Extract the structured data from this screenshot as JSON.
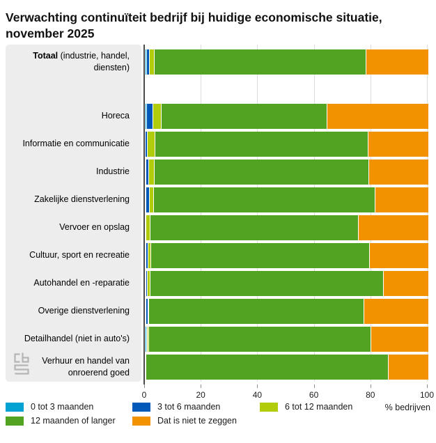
{
  "title": "Verwachting continuïteit bedrijf bij huidige economische situatie, november 2025",
  "axis": {
    "ticks": [
      0,
      20,
      40,
      60,
      80,
      100
    ],
    "unit_label": "% bedrijven"
  },
  "legend": [
    {
      "label": "0 tot 3 maanden",
      "color": "#00a2d1"
    },
    {
      "label": "3 tot 6 maanden",
      "color": "#0058b8"
    },
    {
      "label": "6 tot 12 maanden",
      "color": "#b0cc0b"
    },
    {
      "label": "12 maanden of langer",
      "color": "#52a321"
    },
    {
      "label": "Dat is niet te zeggen",
      "color": "#f39200"
    }
  ],
  "logo_name": "cbs-logo",
  "chart_data": {
    "type": "bar",
    "orientation": "horizontal",
    "stacked": true,
    "title": "Verwachting continuïteit bedrijf bij huidige economische situatie, november 2025",
    "xlabel": "% bedrijven",
    "xlim": [
      0,
      100
    ],
    "grid": true,
    "legend_position": "bottom",
    "categories": [
      {
        "label": "Totaal (industrie, handel, diensten)",
        "bold_part": "Totaal",
        "rest_part": " (industrie, handel, diensten)"
      },
      {
        "label": "Horeca"
      },
      {
        "label": "Informatie en communicatie"
      },
      {
        "label": "Industrie"
      },
      {
        "label": "Zakelijke dienstverlening"
      },
      {
        "label": "Vervoer en opslag"
      },
      {
        "label": "Cultuur, sport en recreatie"
      },
      {
        "label": "Autohandel en -reparatie"
      },
      {
        "label": "Overige dienstverlening"
      },
      {
        "label": "Detailhandel (niet in auto's)"
      },
      {
        "label": "Verhuur en handel van onroerend goed"
      }
    ],
    "series": [
      {
        "name": "0 tot 3 maanden",
        "color": "#00a2d1",
        "values": [
          0.4,
          0.4,
          0.0,
          0.2,
          0.2,
          0.0,
          0.2,
          0.1,
          0.1,
          0.6,
          0.0
        ]
      },
      {
        "name": "3 tot 6 maanden",
        "color": "#0058b8",
        "values": [
          1.2,
          2.3,
          0.8,
          1.0,
          1.2,
          0.2,
          0.8,
          0.6,
          0.7,
          0.1,
          0.0
        ]
      },
      {
        "name": "6 tot 12 maanden",
        "color": "#b0cc0b",
        "values": [
          1.6,
          2.9,
          2.6,
          2.0,
          1.6,
          1.6,
          1.0,
          0.8,
          0.3,
          0.5,
          0.3
        ]
      },
      {
        "name": "12 maanden of langer",
        "color": "#52a321",
        "values": [
          74.8,
          58.7,
          75.5,
          75.9,
          78.2,
          73.6,
          77.3,
          82.7,
          76.2,
          78.5,
          85.7
        ]
      },
      {
        "name": "Dat is niet te zeggen",
        "color": "#f39200",
        "values": [
          22.0,
          35.7,
          21.1,
          20.9,
          18.8,
          24.6,
          20.7,
          15.8,
          22.7,
          20.3,
          14.0
        ]
      }
    ]
  }
}
